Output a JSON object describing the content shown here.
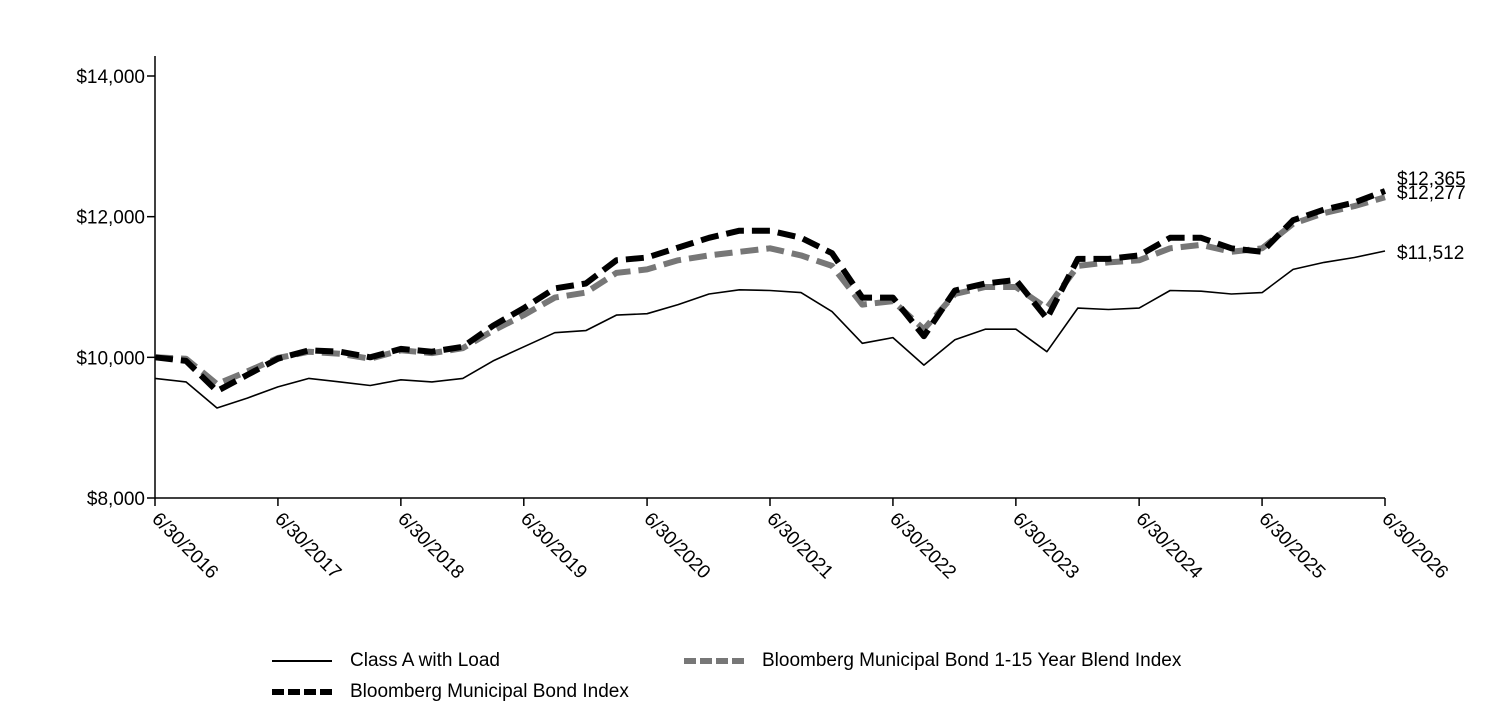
{
  "chart_data": {
    "type": "line",
    "title": "",
    "xlabel": "",
    "ylabel": "",
    "ylim": [
      8000,
      14000
    ],
    "yticks": [
      8000,
      10000,
      12000,
      14000
    ],
    "ytick_labels": [
      "$8,000",
      "$10,000",
      "$12,000",
      "$14,000"
    ],
    "xlim": [
      "2016-06-30",
      "2026-06-30"
    ],
    "xtick_labels": [
      "6/30/2016",
      "6/30/2017",
      "6/30/2018",
      "6/30/2019",
      "6/30/2020",
      "6/30/2021",
      "6/30/2022",
      "6/30/2023",
      "6/30/2024",
      "6/30/2025",
      "6/30/2026"
    ],
    "grid": false,
    "legend_position": "bottom",
    "dates": [
      "2016-06-30",
      "2016-09-30",
      "2016-12-31",
      "2017-03-31",
      "2017-06-30",
      "2017-09-30",
      "2017-12-31",
      "2018-03-31",
      "2018-06-30",
      "2018-09-30",
      "2018-12-31",
      "2019-03-31",
      "2019-06-30",
      "2019-09-30",
      "2019-12-31",
      "2020-03-31",
      "2020-06-30",
      "2020-09-30",
      "2020-12-31",
      "2021-03-31",
      "2021-06-30",
      "2021-09-30",
      "2021-12-31",
      "2022-03-31",
      "2022-06-30",
      "2022-09-30",
      "2022-12-31",
      "2023-03-31",
      "2023-06-30",
      "2023-09-30",
      "2023-12-31",
      "2024-03-31",
      "2024-06-30",
      "2024-09-30",
      "2024-12-31",
      "2025-03-31",
      "2025-06-30",
      "2025-09-30",
      "2025-12-31",
      "2026-03-31",
      "2026-06-30"
    ],
    "series": [
      {
        "name": "Class A with Load",
        "color": "#000000",
        "style": "solid",
        "values": [
          9700,
          9650,
          9280,
          9420,
          9580,
          9700,
          9650,
          9600,
          9680,
          9650,
          9700,
          9950,
          10150,
          10350,
          10380,
          10600,
          10620,
          10750,
          10900,
          10960,
          10950,
          10920,
          10650,
          10200,
          10280,
          9890,
          10250,
          10400,
          10400,
          10080,
          10700,
          10680,
          10700,
          10950,
          10940,
          10900,
          10920,
          11250,
          11350,
          11420,
          11512
        ],
        "end_label": "$11,512"
      },
      {
        "name": "Bloomberg Municipal Bond Index",
        "color": "#000000",
        "style": "dashed",
        "values": [
          10000,
          9950,
          9520,
          9750,
          9980,
          10100,
          10080,
          10000,
          10120,
          10080,
          10150,
          10450,
          10700,
          10980,
          11050,
          11380,
          11420,
          11560,
          11700,
          11800,
          11800,
          11700,
          11480,
          10850,
          10850,
          10300,
          10950,
          11050,
          11100,
          10550,
          11400,
          11400,
          11450,
          11700,
          11700,
          11550,
          11500,
          11950,
          12100,
          12200,
          12365
        ],
        "end_label": "$12,365"
      },
      {
        "name": "Bloomberg Municipal Bond 1-15 Year Blend Index",
        "color": "#777777",
        "style": "dashed",
        "values": [
          10000,
          9980,
          9620,
          9800,
          9990,
          10080,
          10050,
          9980,
          10100,
          10060,
          10130,
          10380,
          10600,
          10850,
          10920,
          11200,
          11250,
          11380,
          11450,
          11500,
          11550,
          11450,
          11300,
          10750,
          10800,
          10400,
          10900,
          11000,
          11000,
          10700,
          11300,
          11350,
          11380,
          11550,
          11600,
          11500,
          11550,
          11900,
          12050,
          12150,
          12277
        ],
        "end_label": "$12,277"
      }
    ]
  },
  "legend": {
    "item_class_a": "Class A with Load",
    "item_muni_blend": "Bloomberg Municipal Bond 1-15 Year Blend Index",
    "item_muni_index": "Bloomberg Municipal Bond Index"
  }
}
